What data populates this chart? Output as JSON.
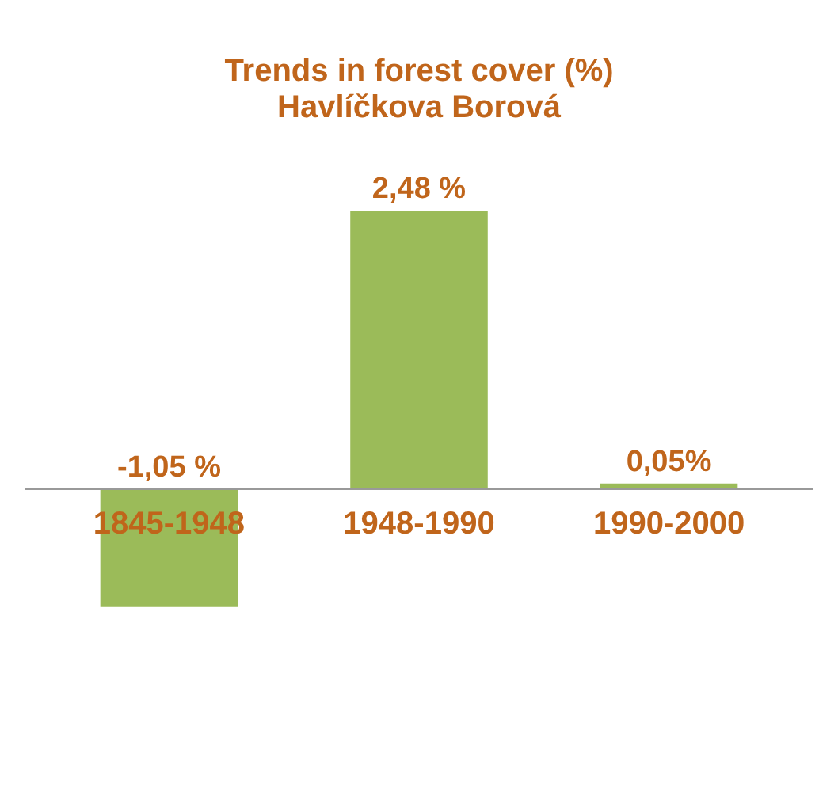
{
  "chart_data": {
    "type": "bar",
    "title": "Trends in forest cover (%)",
    "subtitle": "Havlíčkova Borová",
    "categories": [
      "1845-1948",
      "1948-1990",
      "1990-2000"
    ],
    "values": [
      -1.05,
      2.48,
      0.05
    ],
    "value_labels": [
      "-1,05 %",
      "2,48 %",
      "0,05%"
    ],
    "color": "#9bbb59",
    "grid": false
  }
}
